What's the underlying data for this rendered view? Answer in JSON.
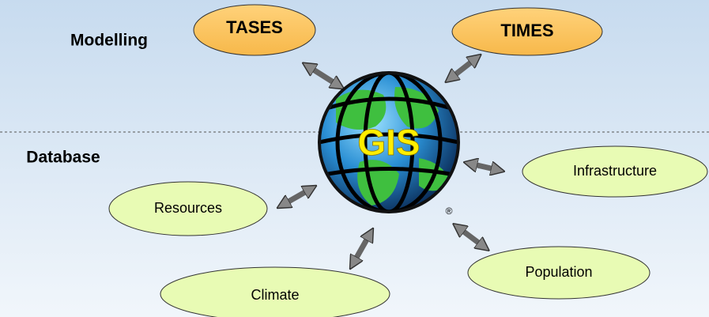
{
  "sections": {
    "top": "Modelling",
    "bottom": "Database"
  },
  "center": {
    "label": "GIS",
    "mark": "®"
  },
  "nodes": [
    {
      "label": "TASES"
    },
    {
      "label": "TIMES"
    },
    {
      "label": "Infrastructure"
    },
    {
      "label": "Resources"
    },
    {
      "label": "Population"
    },
    {
      "label": "Climate"
    }
  ]
}
